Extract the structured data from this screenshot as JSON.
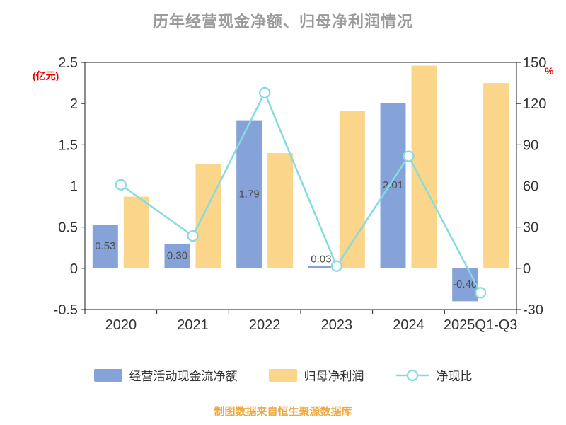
{
  "title": "历年经营现金净额、归母净利润情况",
  "footer": "制图数据来自恒生聚源数据库",
  "colors": {
    "bar_cashflow": "#85A3D8",
    "bar_profit": "#FBD68A",
    "line_ratio": "#85DBE2",
    "title_text": "#9B9B9B",
    "axis_unit": "#E60000",
    "axis_text": "#333333",
    "bar_label": "#4D4D4D",
    "footer_text": "#F0A73C"
  },
  "chart_data": {
    "type": "bar+line",
    "categories": [
      "2020",
      "2021",
      "2022",
      "2023",
      "2024",
      "2025Q1-Q3"
    ],
    "series": [
      {
        "name": "经营活动现金流净额",
        "type": "bar",
        "axis": "left",
        "unit": "亿元",
        "values": [
          0.53,
          0.3,
          1.79,
          0.03,
          2.01,
          -0.4
        ],
        "labels": [
          "0.53",
          "0.30",
          "1.79",
          "0.03",
          "2.01",
          "-0.40"
        ]
      },
      {
        "name": "归母净利润",
        "type": "bar",
        "axis": "left",
        "unit": "亿元",
        "values": [
          0.87,
          1.27,
          1.4,
          1.91,
          2.46,
          2.25
        ]
      },
      {
        "name": "净现比",
        "type": "line",
        "axis": "right",
        "unit": "%",
        "values": [
          60.9,
          23.6,
          127.9,
          1.6,
          81.7,
          -17.8
        ]
      }
    ],
    "left_axis": {
      "unit": "(亿元)",
      "min": -0.5,
      "max": 2.5,
      "ticks": [
        "2.5",
        "2",
        "1.5",
        "1",
        "0.5",
        "0",
        "-0.5"
      ]
    },
    "right_axis": {
      "unit": "%",
      "min": -30,
      "max": 150,
      "ticks": [
        "150",
        "120",
        "90",
        "60",
        "30",
        "0",
        "-30"
      ]
    },
    "legend_position": "bottom",
    "grid": false
  }
}
